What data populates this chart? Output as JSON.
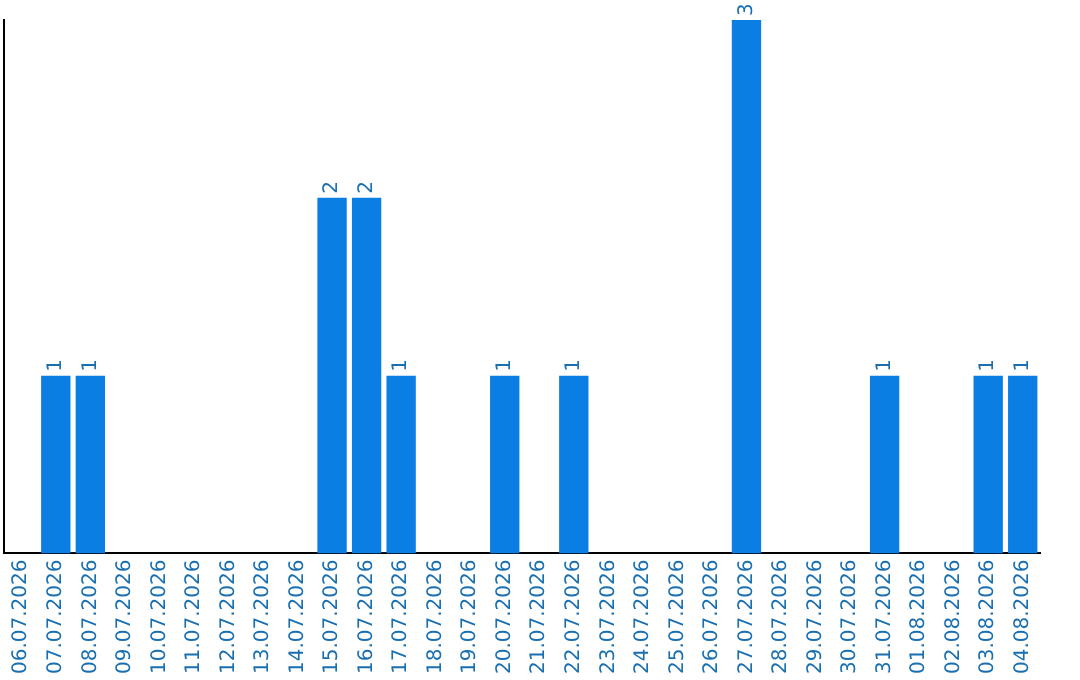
{
  "chart_data": {
    "type": "bar",
    "categories": [
      "06.07.2026",
      "07.07.2026",
      "08.07.2026",
      "09.07.2026",
      "10.07.2026",
      "11.07.2026",
      "12.07.2026",
      "13.07.2026",
      "14.07.2026",
      "15.07.2026",
      "16.07.2026",
      "17.07.2026",
      "18.07.2026",
      "19.07.2026",
      "20.07.2026",
      "21.07.2026",
      "22.07.2026",
      "23.07.2026",
      "24.07.2026",
      "25.07.2026",
      "26.07.2026",
      "27.07.2026",
      "28.07.2026",
      "29.07.2026",
      "30.07.2026",
      "31.07.2026",
      "01.08.2026",
      "02.08.2026",
      "03.08.2026",
      "04.08.2026"
    ],
    "values": [
      0,
      1,
      1,
      0,
      0,
      0,
      0,
      0,
      0,
      2,
      2,
      1,
      0,
      0,
      1,
      0,
      1,
      0,
      0,
      0,
      0,
      3,
      0,
      0,
      0,
      1,
      0,
      0,
      1,
      1
    ],
    "value_labels": [
      null,
      "1",
      "1",
      null,
      null,
      null,
      null,
      null,
      null,
      "2",
      "2",
      "1",
      null,
      null,
      "1",
      null,
      "1",
      null,
      null,
      null,
      null,
      "3",
      null,
      null,
      null,
      "1",
      null,
      null,
      "1",
      "1"
    ],
    "color": "#0a7ee3",
    "grid": false,
    "legend": false,
    "tick_labels": "x"
  }
}
